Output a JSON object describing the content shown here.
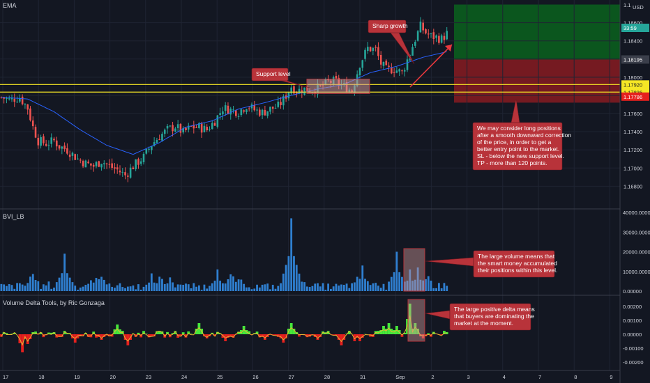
{
  "chart_data": [
    {
      "type": "candlestick",
      "title": "EMA",
      "currency": "USD",
      "ylim": [
        1.1655,
        1.1885
      ],
      "price_axis_ticks": [
        "1.18600",
        "1.18400",
        "1.18000",
        "1.17600",
        "1.17400",
        "1.17200",
        "1.17000",
        "1.16800"
      ],
      "price_tags": {
        "top_cut": "1.1",
        "countdown": "33:59",
        "current": "1.18195",
        "yellow_upper": "1.17920",
        "yellow_lower": "1.17836",
        "red": "1.17786"
      },
      "support_lines": [
        1.1792,
        1.17836
      ],
      "take_profit_zone": [
        1.18195,
        1.188
      ],
      "stop_loss_zone": [
        1.1772,
        1.18195
      ],
      "close_path": [
        [
          0,
          1.1778
        ],
        [
          3,
          1.1775
        ],
        [
          7,
          1.1778
        ],
        [
          10,
          1.1766
        ],
        [
          12,
          1.1745
        ],
        [
          14,
          1.173
        ],
        [
          17,
          1.1727
        ],
        [
          20,
          1.173
        ],
        [
          22,
          1.1724
        ],
        [
          25,
          1.172
        ],
        [
          29,
          1.171
        ],
        [
          32,
          1.1705
        ],
        [
          35,
          1.1702
        ],
        [
          38,
          1.1708
        ],
        [
          41,
          1.1702
        ],
        [
          44,
          1.1698
        ],
        [
          47,
          1.1692
        ],
        [
          50,
          1.1702
        ],
        [
          54,
          1.1712
        ],
        [
          57,
          1.1726
        ],
        [
          60,
          1.1735
        ],
        [
          63,
          1.1742
        ],
        [
          66,
          1.1746
        ],
        [
          69,
          1.1739
        ],
        [
          72,
          1.1745
        ],
        [
          75,
          1.1745
        ],
        [
          78,
          1.1742
        ],
        [
          81,
          1.1752
        ],
        [
          84,
          1.1766
        ],
        [
          87,
          1.1764
        ],
        [
          90,
          1.1762
        ],
        [
          93,
          1.1769
        ],
        [
          96,
          1.1764
        ],
        [
          99,
          1.1761
        ],
        [
          102,
          1.1765
        ],
        [
          105,
          1.1768
        ],
        [
          107,
          1.1775
        ],
        [
          110,
          1.179
        ],
        [
          112,
          1.1785
        ],
        [
          115,
          1.1787
        ],
        [
          118,
          1.1786
        ],
        [
          121,
          1.1789
        ],
        [
          124,
          1.1795
        ],
        [
          127,
          1.1795
        ],
        [
          130,
          1.179
        ],
        [
          133,
          1.1785
        ],
        [
          136,
          1.1815
        ],
        [
          139,
          1.1832
        ],
        [
          142,
          1.183
        ],
        [
          144,
          1.1815
        ],
        [
          146,
          1.1808
        ],
        [
          149,
          1.1809
        ],
        [
          152,
          1.1805
        ],
        [
          154,
          1.1819
        ],
        [
          157,
          1.1842
        ],
        [
          159,
          1.1856
        ],
        [
          161,
          1.1849
        ],
        [
          163,
          1.1845
        ],
        [
          165,
          1.1844
        ],
        [
          167,
          1.1842
        ],
        [
          169,
          1.1848
        ]
      ],
      "ema_path": [
        [
          0,
          1.1778
        ],
        [
          10,
          1.1776
        ],
        [
          20,
          1.1762
        ],
        [
          30,
          1.1742
        ],
        [
          40,
          1.1725
        ],
        [
          50,
          1.1715
        ],
        [
          60,
          1.1728
        ],
        [
          70,
          1.1745
        ],
        [
          80,
          1.1752
        ],
        [
          90,
          1.1765
        ],
        [
          100,
          1.1772
        ],
        [
          110,
          1.178
        ],
        [
          120,
          1.1787
        ],
        [
          130,
          1.1792
        ],
        [
          140,
          1.1805
        ],
        [
          150,
          1.1812
        ],
        [
          160,
          1.1822
        ],
        [
          169,
          1.1828
        ]
      ]
    },
    {
      "type": "bar",
      "title": "BVI_LB",
      "ylim": [
        0,
        40000
      ],
      "axis_ticks": [
        "40000.00000",
        "30000.00000",
        "20000.00000",
        "10000.00000",
        "0.00000"
      ],
      "spikes": [
        [
          24,
          19000
        ],
        [
          57,
          9000
        ],
        [
          82,
          11000
        ],
        [
          110,
          37000
        ],
        [
          137,
          13000
        ],
        [
          150,
          20000
        ],
        [
          155,
          11000
        ],
        [
          158,
          12000
        ]
      ]
    },
    {
      "type": "line",
      "title": "Volume Delta Tools, by Ric Gonzaga",
      "ylim": [
        -0.0025,
        0.0025
      ],
      "axis_ticks": [
        "0.00200",
        "0.00100",
        "0.00000",
        "-0.00100",
        "-0.00200"
      ],
      "spikes": [
        [
          8,
          -0.0013
        ],
        [
          10,
          -0.0007
        ],
        [
          28,
          -0.0006
        ],
        [
          38,
          -0.0004
        ],
        [
          44,
          0.0007
        ],
        [
          48,
          -0.0008
        ],
        [
          75,
          0.0008
        ],
        [
          78,
          -0.0003
        ],
        [
          85,
          -0.0005
        ],
        [
          92,
          0.0006
        ],
        [
          100,
          -0.0004
        ],
        [
          107,
          -0.0006
        ],
        [
          110,
          0.0008
        ],
        [
          120,
          -0.0004
        ],
        [
          129,
          -0.0008
        ],
        [
          135,
          -0.001
        ],
        [
          136,
          -0.0005
        ],
        [
          145,
          0.0006
        ],
        [
          147,
          0.0008
        ],
        [
          150,
          0.0006
        ],
        [
          155,
          0.0022
        ],
        [
          157,
          0.0008
        ],
        [
          160,
          -0.0003
        ]
      ]
    }
  ],
  "x_axis": {
    "labels": [
      "17",
      "18",
      "19",
      "20",
      "23",
      "24",
      "25",
      "26",
      "27",
      "28",
      "31",
      "Sep",
      "2",
      "3",
      "4",
      "7",
      "8",
      "9"
    ],
    "scale": {
      "bars_per_day": 25.6,
      "sep_bar": 146
    }
  },
  "annotations": {
    "support_level": "Support level",
    "sharp_growth": "Sharp growth",
    "main_note": [
      "We may consider long positions",
      "after a smooth downward correction",
      "of the price, in order to get a",
      "better entry point to the market.",
      "SL - below the new support level.",
      "TP - more than 120 points."
    ],
    "volume_note": [
      "The large volume means that",
      "the smart money accumulated",
      "their positions within this level."
    ],
    "delta_note": [
      "The large positive delta means",
      "that buyers are dominating the",
      "market at the moment."
    ]
  },
  "colors": {
    "background": "#131722",
    "candle_up": "#26a69a",
    "candle_down": "#ef5350",
    "ema": "#2962ff",
    "support": "#f5e625",
    "tp_zone": "#0b5a1f",
    "sl_zone": "#7a1a22",
    "volume": "#2f7fd0",
    "delta_pos": "#46e83a",
    "delta_neg": "#e5201e",
    "delta_line": "#e8b232",
    "callout": "#b8333a"
  }
}
